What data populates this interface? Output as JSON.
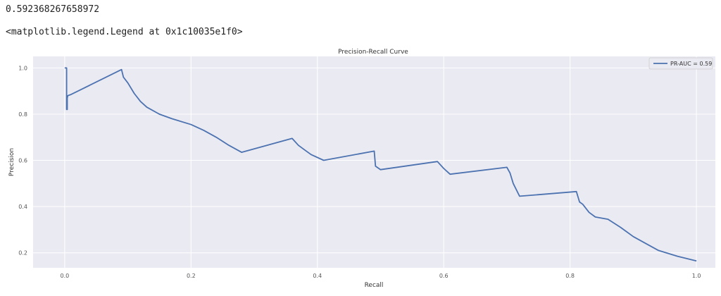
{
  "output": {
    "value_line": "0.592368267658972",
    "legend_repr": "<matplotlib.legend.Legend at 0x1c10035e1f0>"
  },
  "colors": {
    "plot_background": "#eaeaf2",
    "grid": "#ffffff",
    "line": "#4c72b0"
  },
  "chart_data": {
    "type": "line",
    "title": "Precision-Recall Curve",
    "xlabel": "Recall",
    "ylabel": "Precision",
    "xlim": [
      -0.05,
      1.03
    ],
    "ylim": [
      0.135,
      1.05
    ],
    "x_ticks": [
      0.0,
      0.2,
      0.4,
      0.6,
      0.8,
      1.0
    ],
    "x_tick_labels": [
      "0.0",
      "0.2",
      "0.4",
      "0.6",
      "0.8",
      "1.0"
    ],
    "y_ticks": [
      0.2,
      0.4,
      0.6,
      0.8,
      1.0
    ],
    "y_tick_labels": [
      "0.2",
      "0.4",
      "0.6",
      "0.8",
      "1.0"
    ],
    "grid": true,
    "legend_position": "top-right",
    "series": [
      {
        "name": "PR-AUC = 0.59",
        "x": [
          0.0,
          0.003,
          0.003,
          0.004,
          0.004,
          0.005,
          0.01,
          0.09,
          0.093,
          0.1,
          0.11,
          0.12,
          0.13,
          0.15,
          0.17,
          0.2,
          0.22,
          0.24,
          0.26,
          0.28,
          0.36,
          0.37,
          0.38,
          0.39,
          0.41,
          0.49,
          0.492,
          0.5,
          0.59,
          0.6,
          0.61,
          0.7,
          0.705,
          0.71,
          0.72,
          0.81,
          0.815,
          0.82,
          0.83,
          0.84,
          0.86,
          0.88,
          0.9,
          0.92,
          0.94,
          0.97,
          1.0
        ],
        "y": [
          1.0,
          1.0,
          0.82,
          0.82,
          0.87,
          0.88,
          0.885,
          0.993,
          0.96,
          0.935,
          0.89,
          0.855,
          0.83,
          0.8,
          0.78,
          0.755,
          0.73,
          0.7,
          0.665,
          0.635,
          0.695,
          0.665,
          0.645,
          0.625,
          0.6,
          0.64,
          0.575,
          0.56,
          0.595,
          0.565,
          0.54,
          0.57,
          0.545,
          0.5,
          0.445,
          0.465,
          0.42,
          0.41,
          0.375,
          0.355,
          0.345,
          0.31,
          0.27,
          0.24,
          0.21,
          0.185,
          0.165
        ]
      }
    ]
  }
}
